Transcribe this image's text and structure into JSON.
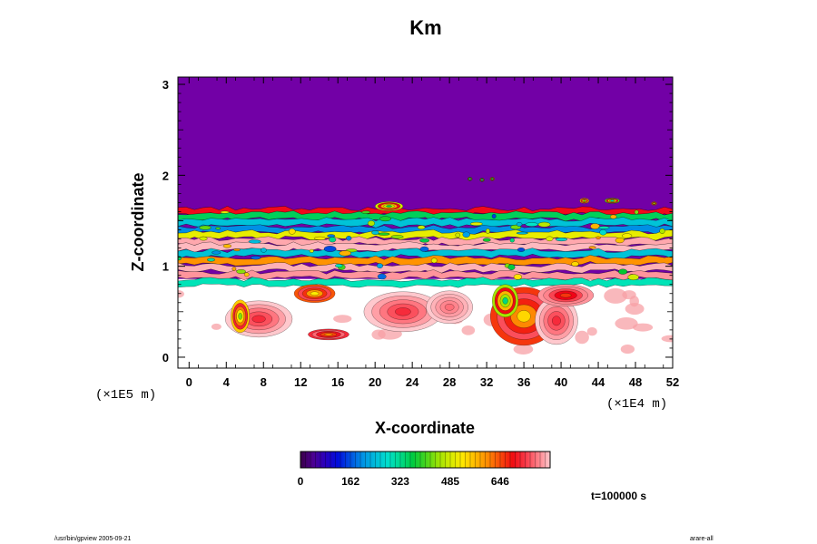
{
  "chart_data": {
    "type": "heatmap",
    "title": "Km",
    "xlabel": "X-coordinate",
    "ylabel": "Z-coordinate",
    "x_ticks": [
      "0",
      "4",
      "8",
      "12",
      "16",
      "20",
      "24",
      "28",
      "32",
      "36",
      "40",
      "44",
      "48",
      "52"
    ],
    "x_tick_values": [
      0,
      4,
      8,
      12,
      16,
      20,
      24,
      28,
      32,
      36,
      40,
      44,
      48,
      52
    ],
    "y_ticks": [
      "0",
      "1",
      "2",
      "3"
    ],
    "y_tick_values": [
      0,
      1,
      2,
      3
    ],
    "xlim": [
      -1.2,
      52
    ],
    "ylim": [
      -0.12,
      3.08
    ],
    "x_scale_label": "(×1E4 m)",
    "y_scale_label": "(×1E5 m)",
    "colorbar": {
      "tick_labels": [
        "0",
        "162",
        "323",
        "485",
        "646"
      ],
      "tick_values": [
        0,
        162,
        323,
        485,
        646
      ],
      "range": [
        0,
        808
      ]
    },
    "time_label": "t=100000 s",
    "background_color": "#7200a6",
    "bands": [
      {
        "z": 1.6,
        "value": 700
      },
      {
        "z": 1.55,
        "value": 350
      },
      {
        "z": 1.48,
        "value": 250
      },
      {
        "z": 1.4,
        "value": 200
      },
      {
        "z": 1.34,
        "value": 500
      },
      {
        "z": 1.27,
        "value": 790
      },
      {
        "z": 1.21,
        "value": 800
      },
      {
        "z": 1.14,
        "value": 250
      },
      {
        "z": 1.06,
        "value": 600
      },
      {
        "z": 0.98,
        "value": 795
      },
      {
        "z": 0.9,
        "value": 780
      },
      {
        "z": 0.82,
        "value": 300
      }
    ],
    "blobs": [
      {
        "x": 7.5,
        "z": 0.42,
        "rx": 3.6,
        "rz": 0.2,
        "value": 720
      },
      {
        "x": 5.5,
        "z": 0.45,
        "rx": 1.0,
        "rz": 0.18,
        "value": 430
      },
      {
        "x": 15.0,
        "z": 0.25,
        "rx": 2.2,
        "rz": 0.06,
        "value": 600
      },
      {
        "x": 23.0,
        "z": 0.5,
        "rx": 4.2,
        "rz": 0.22,
        "value": 720
      },
      {
        "x": 28.0,
        "z": 0.55,
        "rx": 2.5,
        "rz": 0.18,
        "value": 760
      },
      {
        "x": 36.0,
        "z": 0.45,
        "rx": 3.6,
        "rz": 0.32,
        "value": 540
      },
      {
        "x": 34.0,
        "z": 0.62,
        "rx": 1.4,
        "rz": 0.18,
        "value": 330
      },
      {
        "x": 39.5,
        "z": 0.4,
        "rx": 2.3,
        "rz": 0.26,
        "value": 720
      },
      {
        "x": 40.5,
        "z": 0.68,
        "rx": 3.0,
        "rz": 0.12,
        "value": 660
      },
      {
        "x": 13.5,
        "z": 0.7,
        "rx": 2.2,
        "rz": 0.1,
        "value": 520
      },
      {
        "x": 30.2,
        "z": 1.96,
        "rx": 0.25,
        "rz": 0.02,
        "value": 250
      },
      {
        "x": 31.5,
        "z": 1.95,
        "rx": 0.25,
        "rz": 0.02,
        "value": 260
      },
      {
        "x": 32.6,
        "z": 1.96,
        "rx": 0.25,
        "rz": 0.02,
        "value": 330
      },
      {
        "x": 42.5,
        "z": 1.72,
        "rx": 0.5,
        "rz": 0.03,
        "value": 420
      },
      {
        "x": 45.5,
        "z": 1.72,
        "rx": 0.8,
        "rz": 0.03,
        "value": 300
      },
      {
        "x": 50.0,
        "z": 1.69,
        "rx": 0.3,
        "rz": 0.02,
        "value": 450
      },
      {
        "x": 21.5,
        "z": 1.66,
        "rx": 1.5,
        "rz": 0.05,
        "value": 360
      }
    ]
  },
  "footer": {
    "left": "/usr/bin/gpview 2005-09-21",
    "right": "arare-all"
  }
}
